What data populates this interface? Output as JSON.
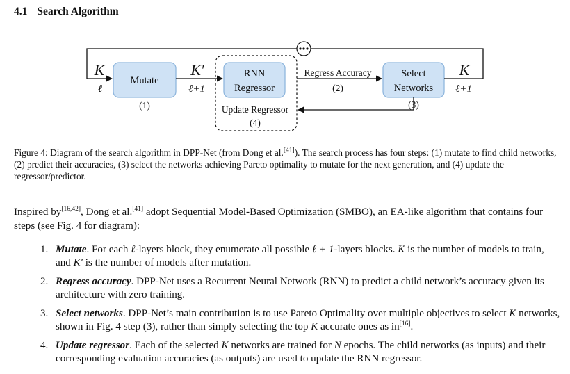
{
  "section": {
    "number": "4.1",
    "title": "Search Algorithm"
  },
  "diagram": {
    "k_left_top": "K",
    "k_left_bottom": "ℓ",
    "mutate": "Mutate",
    "step1": "(1)",
    "kprime_top": "K′",
    "kprime_bottom": "ℓ+1",
    "rnn_line1": "RNN",
    "rnn_line2": "Regressor",
    "regress_label": "Regress Accuracy",
    "step2": "(2)",
    "select_line1": "Select",
    "select_line2": "Networks",
    "step3": "(3)",
    "k_right_top": "K",
    "k_right_bottom": "ℓ+1",
    "update_label": "Update Regressor",
    "step4": "(4)"
  },
  "caption": {
    "prefix": "Figure 4: Diagram of the search algorithm in DPP-Net (from Dong et al.",
    "ref": "[41]",
    "rest": "). The search process has four steps: (1) mutate to find child networks, (2) predict their accuracies, (3) select the networks achieving Pareto optimality to mutate for the next generation, and (4) update the regressor/predictor."
  },
  "paragraph": {
    "a": "Inspired by",
    "ref1": "[16,42]",
    "b": ", Dong et al.",
    "ref2": "[41]",
    "c": " adopt Sequential Model-Based Optimization (SMBO), an EA-like algorithm that contains four steps (see Fig. 4 for diagram):"
  },
  "list": [
    {
      "marker": "1.",
      "keyword": "Mutate",
      "t1": ". For each ",
      "m1": "ℓ",
      "t2": "-layers block, they enumerate all possible ",
      "m2": "ℓ + 1",
      "t3": "-layers blocks. ",
      "m3": "K",
      "t4": " is the number of models to train, and ",
      "m4": "K′",
      "t5": " is the number of models after mutation."
    },
    {
      "marker": "2.",
      "keyword": "Regress accuracy",
      "t1": ". DPP-Net uses a Recurrent Neural Network (RNN) to predict a child network’s accuracy given its architecture with zero training."
    },
    {
      "marker": "3.",
      "keyword": "Select networks",
      "t1": ". DPP-Net’s main contribution is to use Pareto Optimality over multiple objectives to select ",
      "m1": "K",
      "t2": " networks, shown in Fig. 4 step (3), rather than simply selecting the top ",
      "m2": "K",
      "t3": " accurate ones as in",
      "ref": "[16]",
      "t4": "."
    },
    {
      "marker": "4.",
      "keyword": "Update regressor",
      "t1": ". Each of the selected ",
      "m1": "K",
      "t2": " networks are trained for ",
      "m2": "N",
      "t3": " epochs. The child networks (as inputs) and their corresponding evaluation accuracies (as outputs) are used to update the RNN regressor."
    }
  ]
}
